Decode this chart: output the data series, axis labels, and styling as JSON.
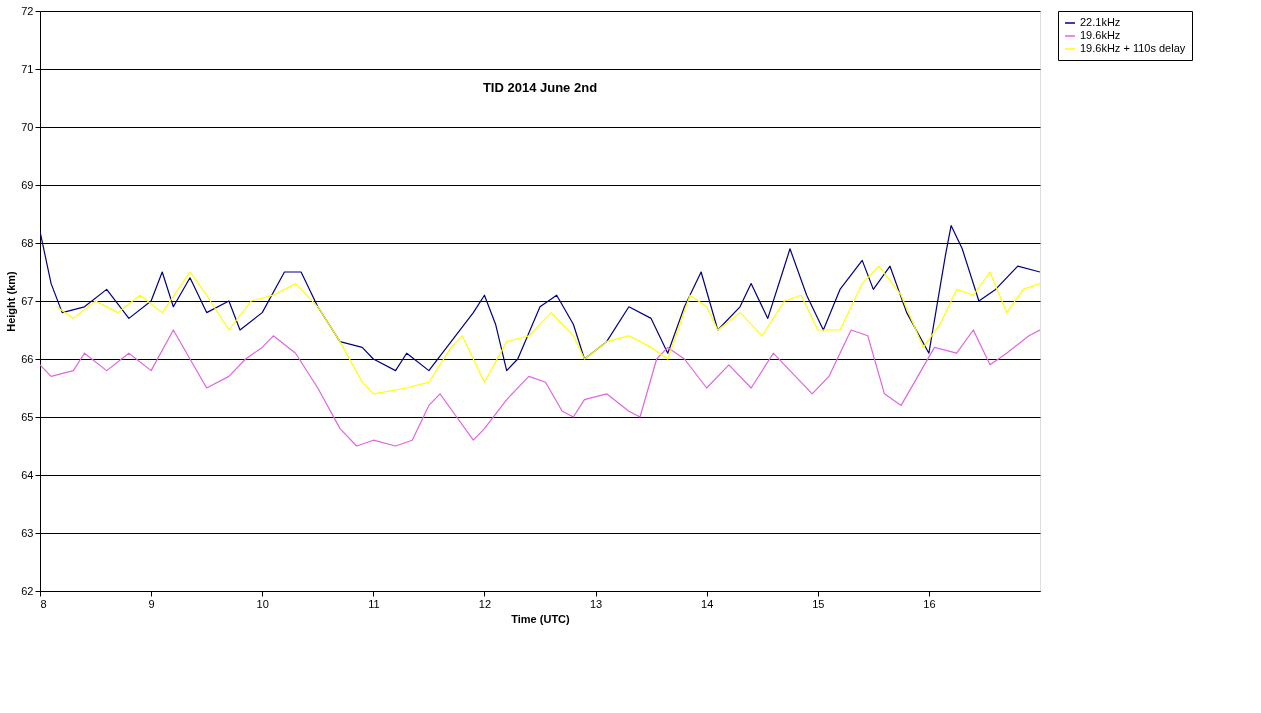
{
  "chart_data": {
    "type": "line",
    "title": "TID 2014 June 2nd",
    "xlabel": "Time (UTC)",
    "ylabel": "Height (km)",
    "xlim": [
      8,
      17
    ],
    "xticks": [
      8,
      9,
      10,
      11,
      12,
      13,
      14,
      15,
      16
    ],
    "ylim": [
      62,
      72
    ],
    "yticks": [
      62,
      63,
      64,
      65,
      66,
      67,
      68,
      69,
      70,
      71,
      72
    ],
    "grid": "y",
    "legend": "right",
    "series": [
      {
        "name": "22.1kHz",
        "color": "#000080",
        "x": [
          8.0,
          8.1,
          8.2,
          8.4,
          8.6,
          8.8,
          9.0,
          9.1,
          9.2,
          9.35,
          9.5,
          9.7,
          9.8,
          10.0,
          10.2,
          10.35,
          10.5,
          10.7,
          10.9,
          11.0,
          11.2,
          11.3,
          11.5,
          11.7,
          11.9,
          12.0,
          12.1,
          12.2,
          12.3,
          12.5,
          12.65,
          12.8,
          12.9,
          13.1,
          13.3,
          13.5,
          13.65,
          13.8,
          13.95,
          14.1,
          14.3,
          14.4,
          14.55,
          14.7,
          14.75,
          14.9,
          15.05,
          15.2,
          15.4,
          15.5,
          15.65,
          15.8,
          16.0,
          16.15,
          16.2,
          16.3,
          16.45,
          16.6,
          16.8,
          17.0
        ],
        "values": [
          68.2,
          67.3,
          66.8,
          66.9,
          67.2,
          66.7,
          67.0,
          67.5,
          66.9,
          67.4,
          66.8,
          67.0,
          66.5,
          66.8,
          67.5,
          67.5,
          66.9,
          66.3,
          66.2,
          66.0,
          65.8,
          66.1,
          65.8,
          66.3,
          66.8,
          67.1,
          66.6,
          65.8,
          66.0,
          66.9,
          67.1,
          66.6,
          66.0,
          66.3,
          66.9,
          66.7,
          66.1,
          66.9,
          67.5,
          66.5,
          66.9,
          67.3,
          66.7,
          67.6,
          67.9,
          67.1,
          66.5,
          67.2,
          67.7,
          67.2,
          67.6,
          66.8,
          66.1,
          67.8,
          68.3,
          67.9,
          67.0,
          67.2,
          67.6,
          67.5
        ]
      },
      {
        "name": "19.6kHz",
        "color": "#e066e0",
        "x": [
          8.0,
          8.1,
          8.3,
          8.4,
          8.6,
          8.8,
          9.0,
          9.2,
          9.35,
          9.5,
          9.7,
          9.85,
          10.0,
          10.1,
          10.3,
          10.5,
          10.7,
          10.85,
          11.0,
          11.2,
          11.35,
          11.5,
          11.6,
          11.75,
          11.9,
          12.0,
          12.2,
          12.4,
          12.55,
          12.7,
          12.8,
          12.9,
          13.1,
          13.3,
          13.4,
          13.55,
          13.65,
          13.8,
          14.0,
          14.2,
          14.4,
          14.6,
          14.75,
          14.95,
          15.1,
          15.3,
          15.45,
          15.6,
          15.75,
          15.9,
          16.05,
          16.25,
          16.4,
          16.55,
          16.7,
          16.9,
          17.0
        ],
        "values": [
          65.9,
          65.7,
          65.8,
          66.1,
          65.8,
          66.1,
          65.8,
          66.5,
          66.0,
          65.5,
          65.7,
          66.0,
          66.2,
          66.4,
          66.1,
          65.5,
          64.8,
          64.5,
          64.6,
          64.5,
          64.6,
          65.2,
          65.4,
          65.0,
          64.6,
          64.8,
          65.3,
          65.7,
          65.6,
          65.1,
          65.0,
          65.3,
          65.4,
          65.1,
          65.0,
          66.0,
          66.2,
          66.0,
          65.5,
          65.9,
          65.5,
          66.1,
          65.8,
          65.4,
          65.7,
          66.5,
          66.4,
          65.4,
          65.2,
          65.7,
          66.2,
          66.1,
          66.5,
          65.9,
          66.1,
          66.4,
          66.5
        ]
      },
      {
        "name": "19.6kHz + 110s delay",
        "color": "#ffff00",
        "x": [
          8.15,
          8.3,
          8.5,
          8.7,
          8.9,
          9.1,
          9.35,
          9.5,
          9.7,
          9.9,
          10.1,
          10.3,
          10.5,
          10.7,
          10.9,
          11.0,
          11.3,
          11.5,
          11.7,
          11.8,
          12.0,
          12.2,
          12.4,
          12.6,
          12.8,
          12.9,
          13.1,
          13.3,
          13.5,
          13.65,
          13.85,
          14.0,
          14.1,
          14.3,
          14.5,
          14.7,
          14.85,
          15.0,
          15.2,
          15.4,
          15.55,
          15.75,
          15.95,
          16.1,
          16.25,
          16.4,
          16.55,
          16.7,
          16.85,
          17.0
        ],
        "values": [
          66.9,
          66.7,
          67.0,
          66.8,
          67.1,
          66.8,
          67.5,
          67.1,
          66.5,
          67.0,
          67.1,
          67.3,
          66.9,
          66.3,
          65.6,
          65.4,
          65.5,
          65.6,
          66.2,
          66.4,
          65.6,
          66.3,
          66.4,
          66.8,
          66.4,
          66.0,
          66.3,
          66.4,
          66.2,
          66.0,
          67.1,
          66.9,
          66.5,
          66.8,
          66.4,
          67.0,
          67.1,
          66.5,
          66.5,
          67.3,
          67.6,
          67.1,
          66.2,
          66.6,
          67.2,
          67.1,
          67.5,
          66.8,
          67.2,
          67.3
        ]
      }
    ]
  }
}
